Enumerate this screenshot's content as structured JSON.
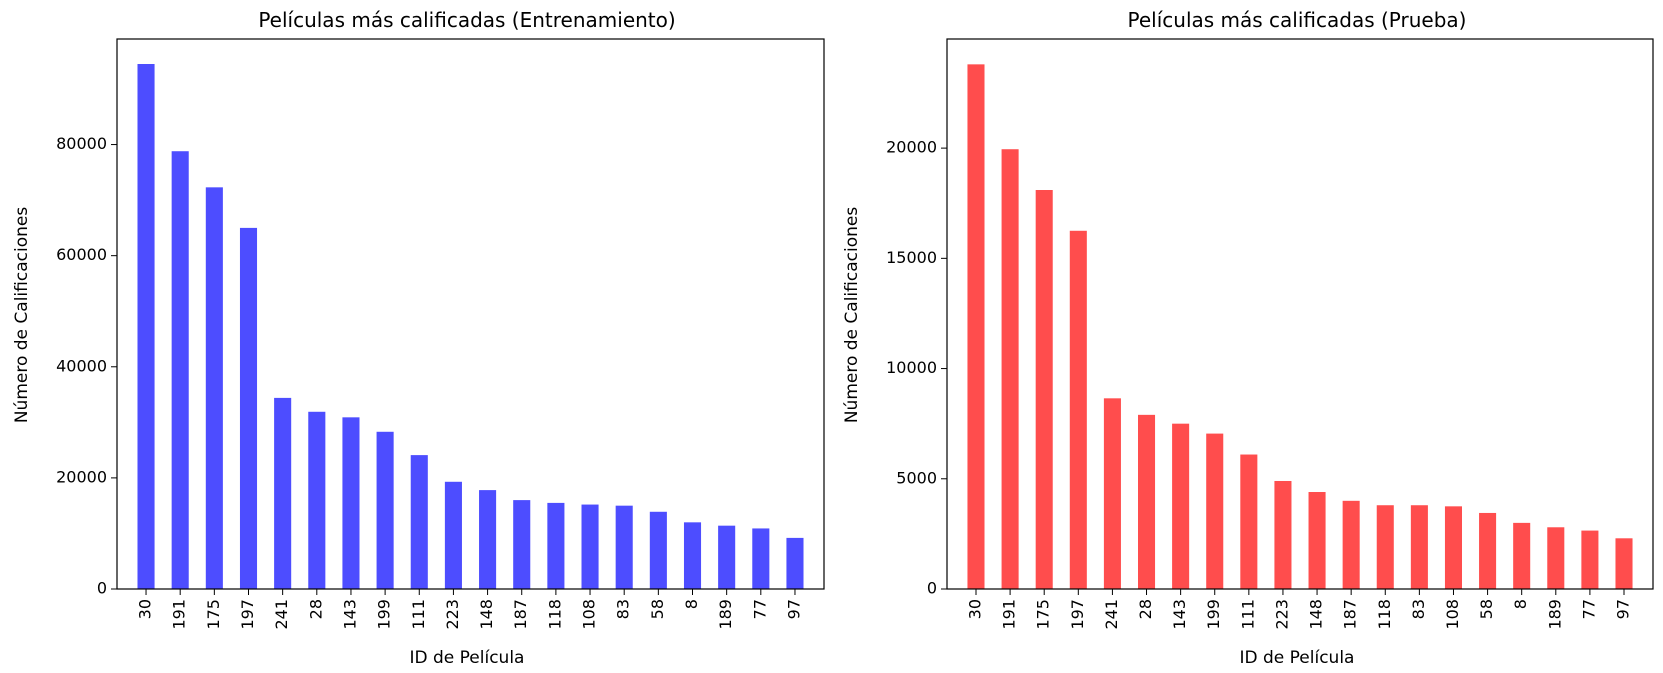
{
  "chart_data": [
    {
      "type": "bar",
      "title": "Películas más calificadas (Entrenamiento)",
      "xlabel": "ID de Película",
      "ylabel": "Número de Calificaciones",
      "categories": [
        "30",
        "191",
        "175",
        "197",
        "241",
        "28",
        "143",
        "199",
        "111",
        "223",
        "148",
        "187",
        "118",
        "108",
        "83",
        "58",
        "8",
        "189",
        "77",
        "97"
      ],
      "values": [
        94500,
        78800,
        72300,
        65000,
        34400,
        31900,
        30900,
        28300,
        24100,
        19300,
        17800,
        16000,
        15500,
        15200,
        15000,
        13900,
        12000,
        11400,
        10900,
        9200
      ],
      "yticks": [
        "0",
        "20000",
        "40000",
        "60000",
        "80000"
      ],
      "ylim": [
        0,
        99000
      ],
      "color": "#4d4dff",
      "grid": false,
      "legend": false
    },
    {
      "type": "bar",
      "title": "Películas más calificadas (Prueba)",
      "xlabel": "ID de Película",
      "ylabel": "Número de Calificaciones",
      "categories": [
        "30",
        "191",
        "175",
        "197",
        "241",
        "28",
        "143",
        "199",
        "111",
        "223",
        "148",
        "187",
        "118",
        "83",
        "108",
        "58",
        "8",
        "189",
        "77",
        "97"
      ],
      "values": [
        23800,
        19950,
        18100,
        16250,
        8650,
        7900,
        7500,
        7050,
        6100,
        4900,
        4400,
        4000,
        3800,
        3800,
        3750,
        3450,
        3000,
        2800,
        2650,
        2300
      ],
      "yticks": [
        "0",
        "5000",
        "10000",
        "15000",
        "20000"
      ],
      "ylim": [
        0,
        24950
      ],
      "color": "#ff4d4d",
      "grid": false,
      "legend": false
    }
  ]
}
